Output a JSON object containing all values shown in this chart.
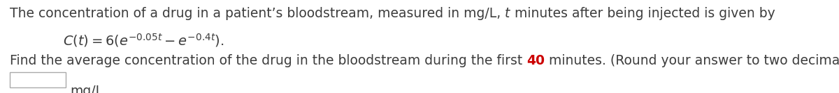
{
  "line1_part1": "The concentration of a drug in a patient’s bloodstream, measured in mg/L, ",
  "line1_italic_t": "t",
  "line1_part2": " minutes after being injected is given by",
  "formula": "$C(t) = 6(e^{-0.05t} - e^{-0.4t}).$",
  "formula_prefix": "$C(t) = $",
  "formula_6": "6",
  "line3_start": "Find the average concentration of the drug in the bloodstream during the first ",
  "line3_num": "40",
  "line3_end": " minutes. (Round your answer to two decimal places.)",
  "line4_unit": "mg/L",
  "bg_color": "#ffffff",
  "text_color": "#3d3d3d",
  "highlight_color": "#cc0000",
  "font_size": 13.5,
  "fig_width": 12.0,
  "fig_height": 1.34,
  "dpi": 100
}
